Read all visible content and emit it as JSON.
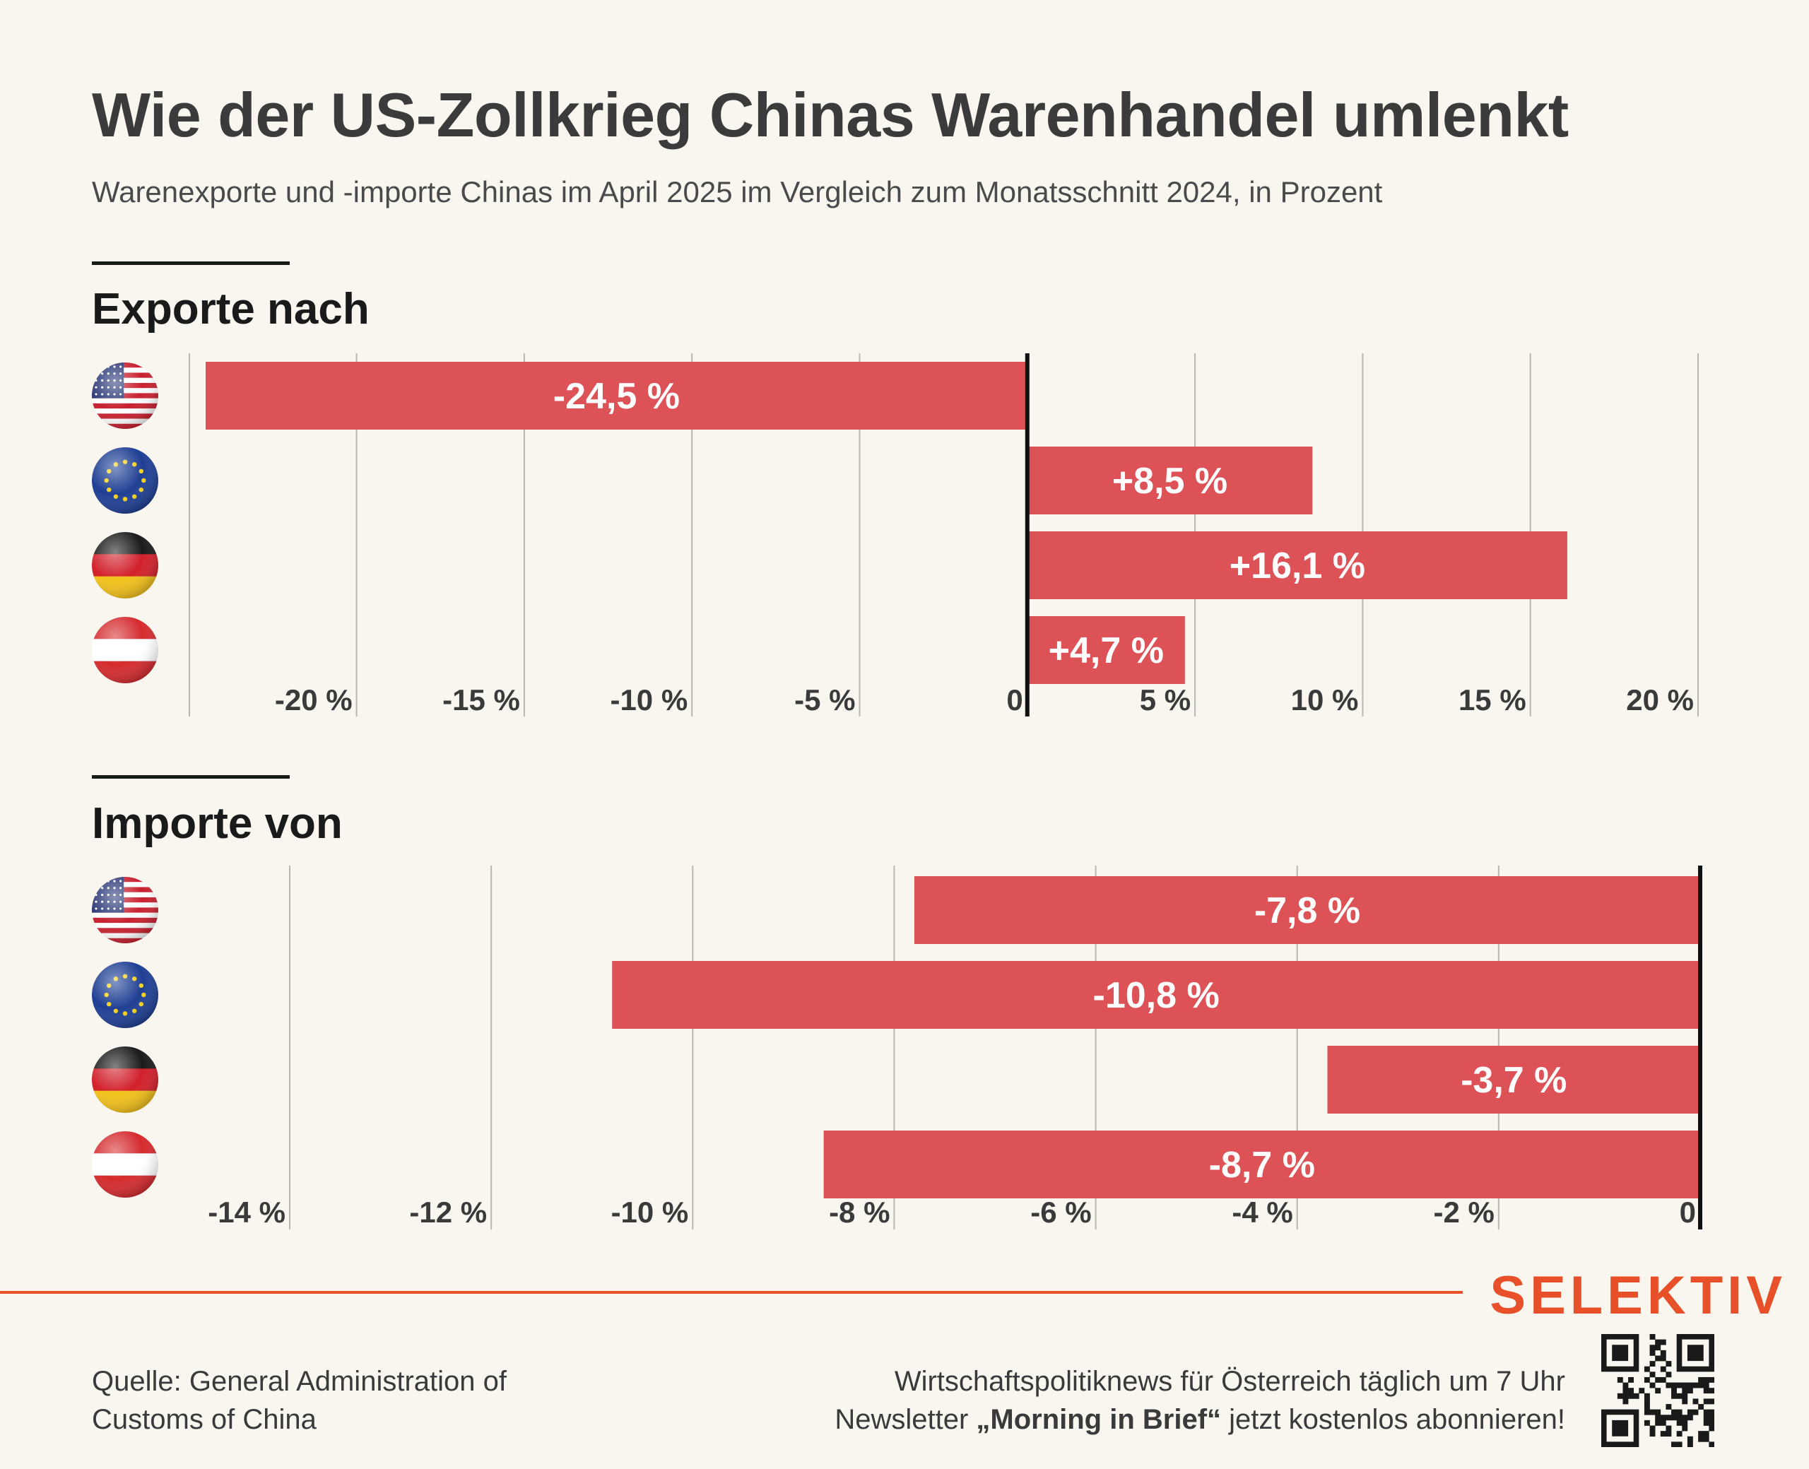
{
  "header": {
    "title": "Wie der US-Zollkrieg Chinas Warenhandel umlenkt",
    "subtitle": "Warenexporte und -importe Chinas im April 2025 im Vergleich zum Monatsschnitt 2024, in Prozent"
  },
  "colors": {
    "bar": "#dd5256",
    "accent": "#e8502a",
    "background": "#f8f6ef"
  },
  "chart_data": [
    {
      "type": "bar",
      "orientation": "horizontal",
      "title": "Exporte nach",
      "categories": [
        "us-flag",
        "eu-flag",
        "de-flag",
        "at-flag"
      ],
      "values": [
        -24.5,
        8.5,
        16.1,
        4.7
      ],
      "labels": [
        "-24,5 %",
        "+8,5 %",
        "+16,1 %",
        "+4,7 %"
      ],
      "xlim": [
        -24.5,
        20
      ],
      "ticks": [
        -20,
        -15,
        -10,
        -5,
        0,
        5,
        10,
        15,
        20
      ],
      "tick_labels": [
        "-20 %",
        "-15 %",
        "-10 %",
        "-5 %",
        "0",
        "5 %",
        "10 %",
        "15 %",
        "20 %"
      ],
      "grid": true
    },
    {
      "type": "bar",
      "orientation": "horizontal",
      "title": "Importe von",
      "categories": [
        "us-flag",
        "eu-flag",
        "de-flag",
        "at-flag"
      ],
      "values": [
        -7.8,
        -10.8,
        -3.7,
        -8.7
      ],
      "labels": [
        "-7,8 %",
        "-10,8 %",
        "-3,7 %",
        "-8,7 %"
      ],
      "xlim": [
        -14,
        0
      ],
      "ticks": [
        -14,
        -12,
        -10,
        -8,
        -6,
        -4,
        -2,
        0
      ],
      "tick_labels": [
        "-14 %",
        "-12 %",
        "-10 %",
        "-8 %",
        "-6 %",
        "-4 %",
        "-2 %",
        "0"
      ],
      "grid": true
    }
  ],
  "footer": {
    "brand": "SELEKTIV",
    "source_line1": "Quelle: General Administration of",
    "source_line2": "Customs of China",
    "promo_line1": "Wirtschaftspolitiknews für Österreich täglich um 7 Uhr",
    "promo_prefix": "Newsletter ",
    "promo_bold": "„Morning in Brief“",
    "promo_suffix": " jetzt kostenlos abonnieren!"
  }
}
